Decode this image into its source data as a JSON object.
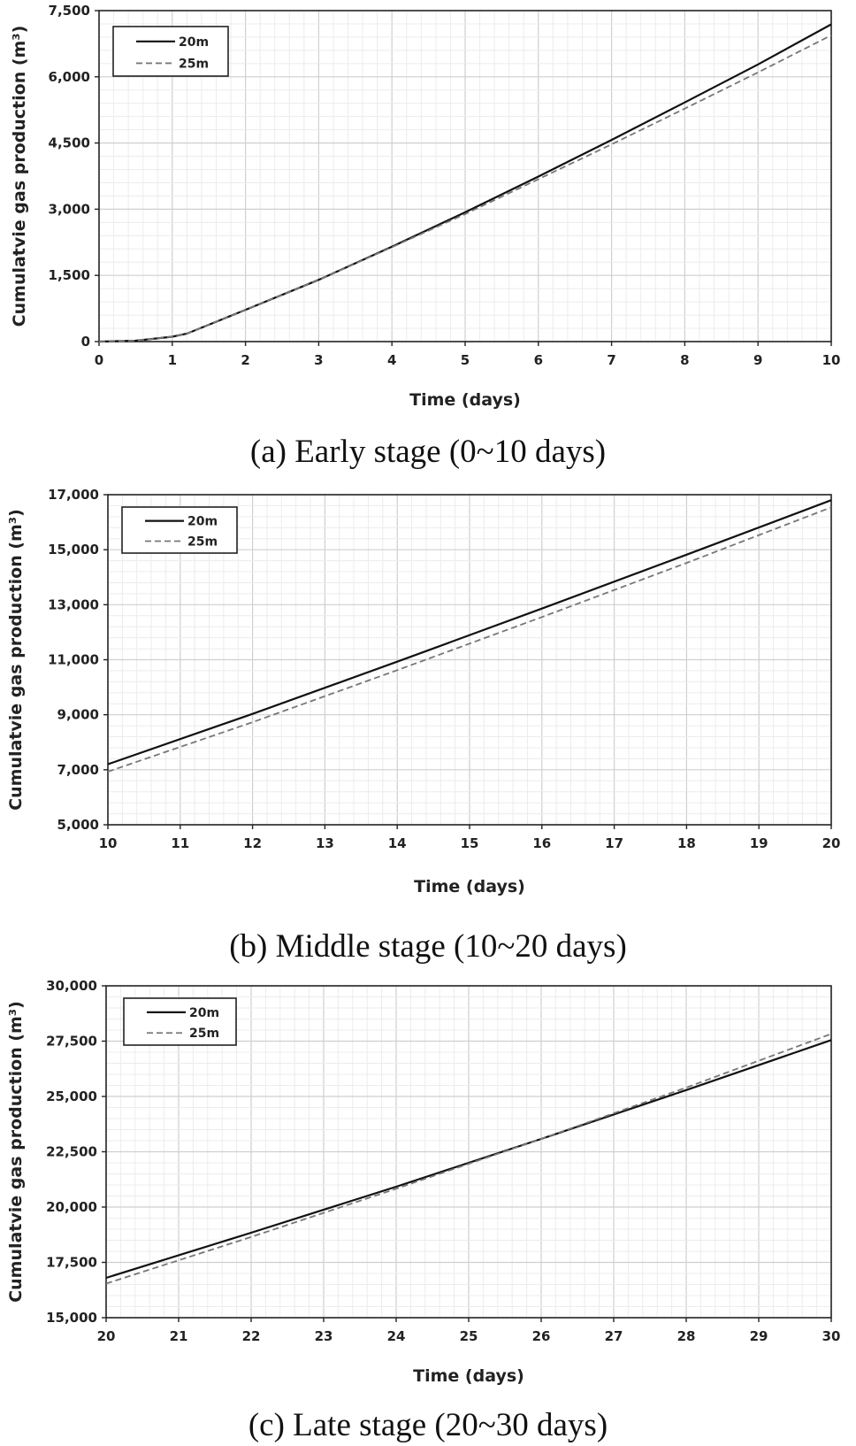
{
  "charts": [
    {
      "caption": "(a)  Early  stage  (0~10  days)"
    },
    {
      "caption": "(b)  Middle  stage  (10~20  days)"
    },
    {
      "caption": "(c)  Late  stage  (20~30  days)"
    }
  ],
  "chart_data": [
    {
      "type": "line",
      "xlabel": "Time (days)",
      "ylabel": "Cumulatvie gas production (m³)",
      "xlim": [
        0,
        10
      ],
      "ylim": [
        0,
        7500
      ],
      "xticks": [
        0,
        1,
        2,
        3,
        4,
        5,
        6,
        7,
        8,
        9,
        10
      ],
      "yticks": [
        0,
        1500,
        3000,
        4500,
        6000,
        7500
      ],
      "yticklabels": [
        "0",
        "1,500",
        "3,000",
        "4,500",
        "6,000",
        "7,500"
      ],
      "grid": true,
      "legend_position": "top-left",
      "series": [
        {
          "name": "20m",
          "style": "solid",
          "color": "#111111",
          "x": [
            0,
            0.5,
            1,
            1.2,
            2,
            3,
            4,
            5,
            6,
            7,
            8,
            9,
            10
          ],
          "y": [
            0,
            20,
            110,
            180,
            720,
            1400,
            2150,
            2930,
            3740,
            4570,
            5420,
            6280,
            7190
          ]
        },
        {
          "name": "25m",
          "style": "dashed",
          "color": "#777777",
          "x": [
            0,
            0.5,
            1,
            1.2,
            2,
            3,
            4,
            5,
            6,
            7,
            8,
            9,
            10
          ],
          "y": [
            0,
            20,
            110,
            180,
            720,
            1400,
            2140,
            2890,
            3680,
            4470,
            5280,
            6100,
            6940
          ]
        }
      ]
    },
    {
      "type": "line",
      "xlabel": "Time (days)",
      "ylabel": "Cumulatvie gas production (m³)",
      "xlim": [
        10,
        20
      ],
      "ylim": [
        5000,
        17000
      ],
      "xticks": [
        10,
        11,
        12,
        13,
        14,
        15,
        16,
        17,
        18,
        19,
        20
      ],
      "yticks": [
        5000,
        7000,
        9000,
        11000,
        13000,
        15000,
        17000
      ],
      "yticklabels": [
        "5,000",
        "7,000",
        "9,000",
        "11,000",
        "13,000",
        "15,000",
        "17,000"
      ],
      "grid": true,
      "legend_position": "top-left",
      "series": [
        {
          "name": "20m",
          "style": "solid",
          "color": "#111111",
          "x": [
            10,
            12,
            14,
            16,
            18,
            20
          ],
          "y": [
            7200,
            9030,
            10930,
            12860,
            14820,
            16800
          ]
        },
        {
          "name": "25m",
          "style": "dashed",
          "color": "#777777",
          "x": [
            10,
            12,
            14,
            16,
            18,
            20
          ],
          "y": [
            6930,
            8730,
            10620,
            12550,
            14520,
            16540
          ]
        }
      ]
    },
    {
      "type": "line",
      "xlabel": "Time (days)",
      "ylabel": "Cumulatvie gas production (m³)",
      "xlim": [
        20,
        30
      ],
      "ylim": [
        15000,
        30000
      ],
      "xticks": [
        20,
        21,
        22,
        23,
        24,
        25,
        26,
        27,
        28,
        29,
        30
      ],
      "yticks": [
        15000,
        17500,
        20000,
        22500,
        25000,
        27500,
        30000
      ],
      "yticklabels": [
        "15,000",
        "17,500",
        "20,000",
        "22,500",
        "25,000",
        "27,500",
        "30,000"
      ],
      "grid": true,
      "legend_position": "top-left",
      "series": [
        {
          "name": "20m",
          "style": "solid",
          "color": "#111111",
          "x": [
            20,
            22,
            24,
            26,
            28,
            30
          ],
          "y": [
            16800,
            18840,
            20920,
            23080,
            25290,
            27550
          ]
        },
        {
          "name": "25m",
          "style": "dashed",
          "color": "#777777",
          "x": [
            20,
            22,
            24,
            26,
            28,
            30
          ],
          "y": [
            16540,
            18650,
            20830,
            23080,
            25400,
            27830
          ]
        }
      ]
    }
  ]
}
